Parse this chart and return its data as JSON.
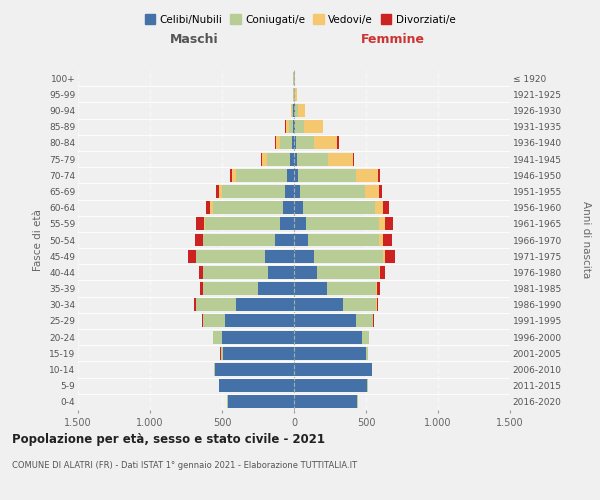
{
  "age_groups": [
    "0-4",
    "5-9",
    "10-14",
    "15-19",
    "20-24",
    "25-29",
    "30-34",
    "35-39",
    "40-44",
    "45-49",
    "50-54",
    "55-59",
    "60-64",
    "65-69",
    "70-74",
    "75-79",
    "80-84",
    "85-89",
    "90-94",
    "95-99",
    "100+"
  ],
  "birth_years": [
    "2016-2020",
    "2011-2015",
    "2006-2010",
    "2001-2005",
    "1996-2000",
    "1991-1995",
    "1986-1990",
    "1981-1985",
    "1976-1980",
    "1971-1975",
    "1966-1970",
    "1961-1965",
    "1956-1960",
    "1951-1955",
    "1946-1950",
    "1941-1945",
    "1936-1940",
    "1931-1935",
    "1926-1930",
    "1921-1925",
    "≤ 1920"
  ],
  "maschi": {
    "celibi": [
      460,
      520,
      550,
      490,
      500,
      480,
      400,
      250,
      180,
      200,
      130,
      100,
      75,
      60,
      50,
      25,
      15,
      8,
      5,
      3,
      2
    ],
    "coniugati": [
      2,
      3,
      5,
      20,
      60,
      150,
      280,
      380,
      450,
      480,
      500,
      520,
      490,
      440,
      350,
      160,
      80,
      30,
      10,
      3,
      2
    ],
    "vedovi": [
      0,
      0,
      0,
      0,
      0,
      1,
      1,
      1,
      2,
      3,
      5,
      8,
      15,
      20,
      30,
      35,
      30,
      20,
      8,
      2,
      1
    ],
    "divorziati": [
      0,
      0,
      0,
      1,
      3,
      8,
      15,
      20,
      30,
      55,
      55,
      50,
      30,
      20,
      15,
      8,
      5,
      2,
      0,
      0,
      0
    ]
  },
  "femmine": {
    "nubili": [
      440,
      510,
      540,
      500,
      470,
      430,
      340,
      230,
      160,
      140,
      100,
      80,
      60,
      40,
      30,
      18,
      12,
      8,
      5,
      3,
      2
    ],
    "coniugate": [
      2,
      2,
      5,
      15,
      50,
      120,
      230,
      340,
      430,
      480,
      490,
      510,
      500,
      450,
      400,
      220,
      130,
      60,
      20,
      5,
      2
    ],
    "vedove": [
      0,
      0,
      0,
      0,
      1,
      2,
      3,
      5,
      8,
      10,
      25,
      40,
      60,
      100,
      150,
      170,
      160,
      130,
      50,
      15,
      3
    ],
    "divorziate": [
      0,
      0,
      0,
      0,
      2,
      5,
      10,
      20,
      35,
      70,
      65,
      60,
      40,
      20,
      15,
      10,
      8,
      5,
      2,
      0,
      0
    ]
  },
  "colors": {
    "celibi_nubili": "#4472a8",
    "coniugati": "#b8cc96",
    "vedovi": "#f5c870",
    "divorziati": "#cc2222"
  },
  "xlim": 1500,
  "title": "Popolazione per età, sesso e stato civile - 2021",
  "subtitle": "COMUNE DI ALATRI (FR) - Dati ISTAT 1° gennaio 2021 - Elaborazione TUTTITALIA.IT",
  "ylabel_left": "Fasce di età",
  "ylabel_right": "Anni di nascita",
  "maschi_label": "Maschi",
  "femmine_label": "Femmine",
  "legend_labels": [
    "Celibi/Nubili",
    "Coniugati/e",
    "Vedovi/e",
    "Divorziati/e"
  ],
  "bg_color": "#f0f0f0"
}
